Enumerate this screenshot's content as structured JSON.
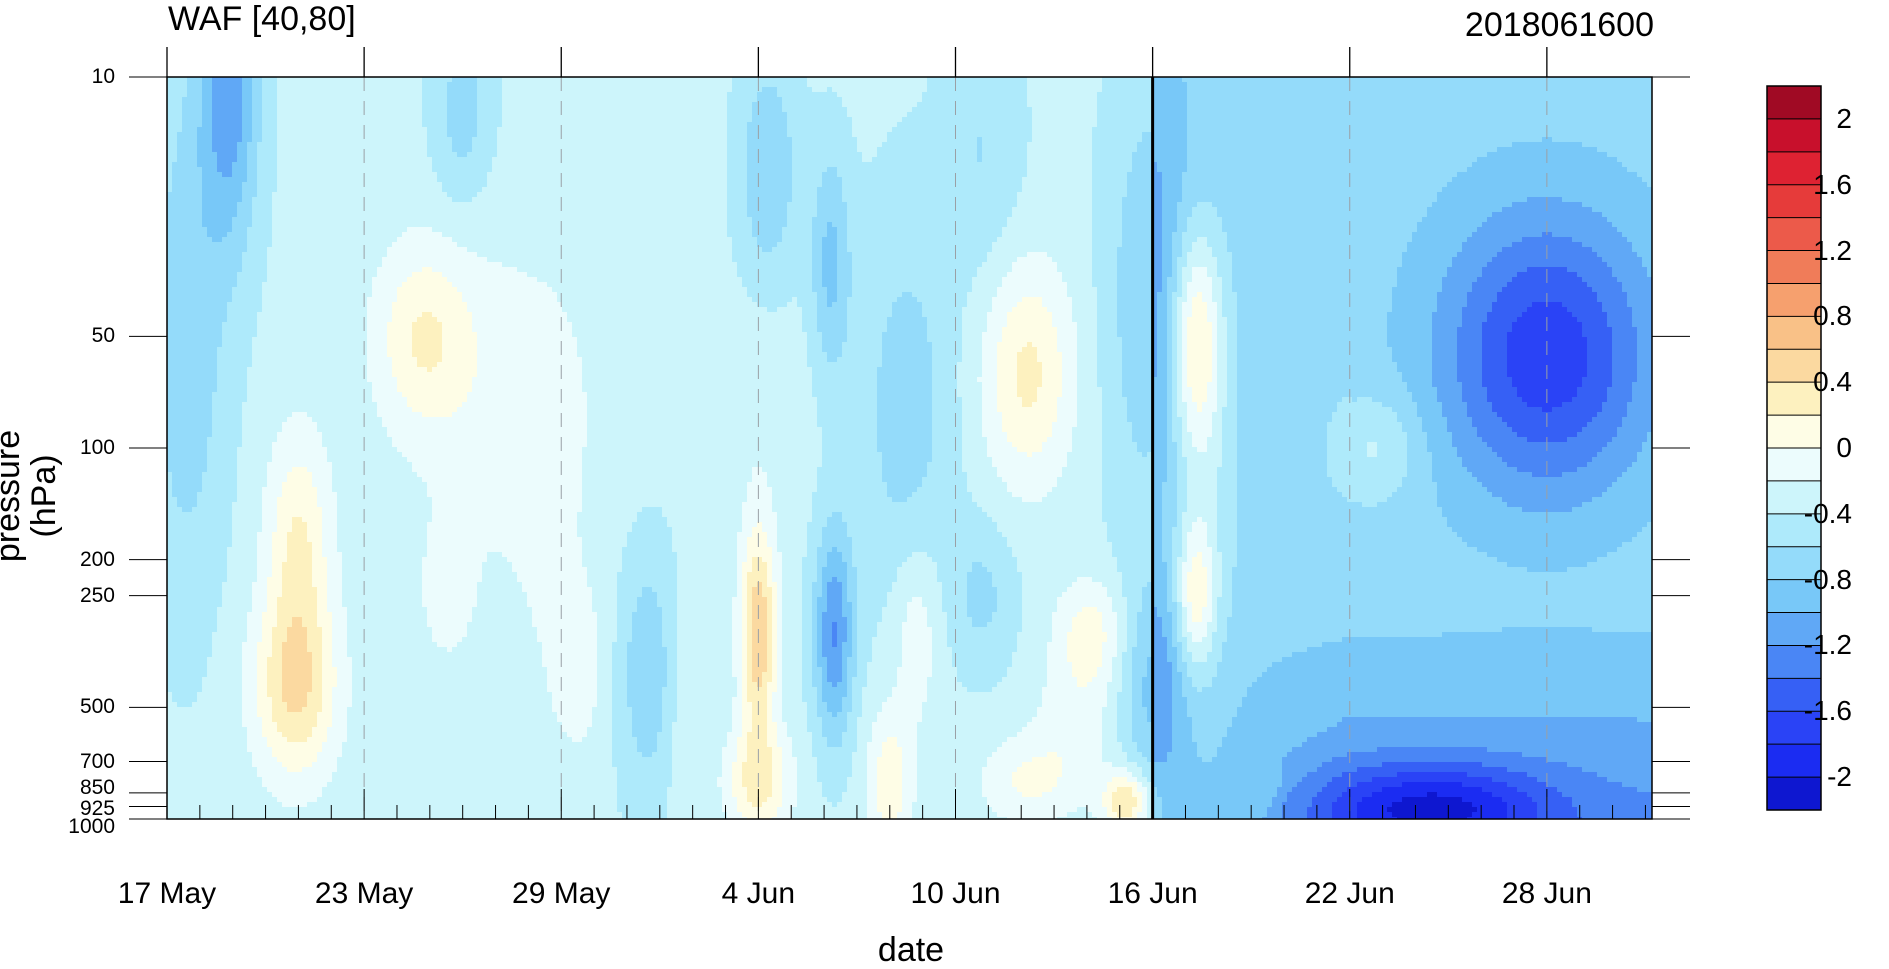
{
  "chart_data": {
    "type": "heatmap",
    "title": "WAF [40,80]",
    "subtitle": "2018061600",
    "xlabel": "date",
    "ylabel": "pressure (hPa)",
    "x_ticks": [
      "17 May",
      "23 May",
      "29 May",
      "4 Jun",
      "10 Jun",
      "16 Jun",
      "22 Jun",
      "28 Jun"
    ],
    "y_ticks": [
      "10",
      "50",
      "100",
      "200",
      "250",
      "500",
      "700",
      "850",
      "925",
      "1000"
    ],
    "y_scale": "log",
    "ylim": [
      1000,
      10
    ],
    "colorbar_labels": [
      "2",
      "1.6",
      "1.2",
      "0.8",
      "0.4",
      "0",
      "-0.4",
      "-0.8",
      "-1.2",
      "-1.6",
      "-2"
    ],
    "color_levels": [
      -2.2,
      -2.0,
      -1.8,
      -1.6,
      -1.4,
      -1.2,
      -1.0,
      -0.8,
      -0.6,
      -0.4,
      -0.2,
      0,
      0.2,
      0.4,
      0.6,
      0.8,
      1.0,
      1.2,
      1.4,
      1.6,
      1.8,
      2.0,
      2.2
    ],
    "colors": [
      "#0e17d0",
      "#1b2cf2",
      "#2a43f6",
      "#3660f5",
      "#4a86f5",
      "#60a8f6",
      "#78c8f8",
      "#94dbfa",
      "#aeeafb",
      "#cdf5fb",
      "#ecfcfd",
      "#fefde6",
      "#fdf1bf",
      "#fbd9a0",
      "#f9c187",
      "#f6a06e",
      "#f07c59",
      "#ec5a4a",
      "#e63b3a",
      "#de2232",
      "#c8102c",
      "#a00a24"
    ],
    "divider": "16 Jun",
    "grid_lines": "dashed"
  }
}
